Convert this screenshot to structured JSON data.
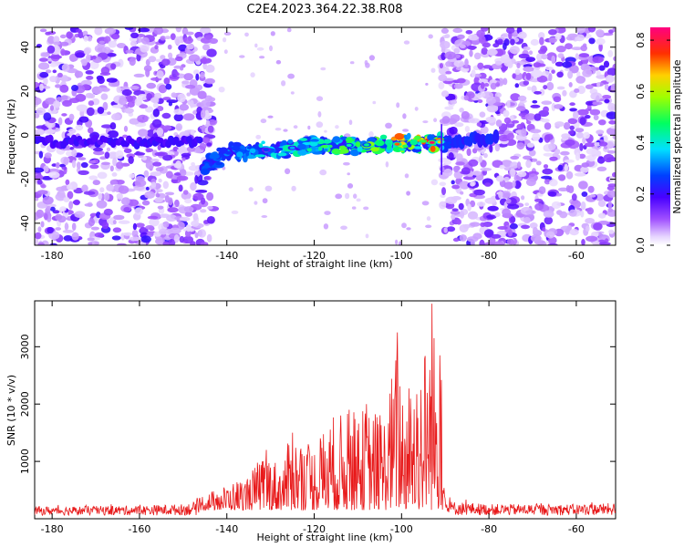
{
  "title": "C2E4.2023.364.22.38.R08",
  "chart_data": [
    {
      "type": "heatmap",
      "xlabel": "Height of straight line (km)",
      "ylabel": "Frequency (Hz)",
      "xlim": [
        -184,
        -51
      ],
      "ylim": [
        -50,
        49
      ],
      "x_ticks": [
        -180,
        -160,
        -140,
        -120,
        -100,
        -80,
        -60
      ],
      "y_ticks": [
        -40,
        -20,
        0,
        20,
        40
      ],
      "colorbar": {
        "label": "Normalized spectral amplitude",
        "range": [
          0,
          0.85
        ],
        "ticks": [
          0.0,
          0.2,
          0.4,
          0.6,
          0.8
        ],
        "colormap": "rainbow"
      },
      "noise_region_x": [
        [
          -184,
          -143
        ],
        [
          -91,
          -51
        ]
      ],
      "signal_band": {
        "x": [
          -146,
          -78
        ],
        "center_freq_at": [
          [
            -145,
            -14
          ],
          [
            -140,
            -8
          ],
          [
            -120,
            -5
          ],
          [
            -100,
            -4
          ],
          [
            -90,
            -3
          ],
          [
            -80,
            -2
          ]
        ]
      }
    },
    {
      "type": "line",
      "xlabel": "Height of straight line (km)",
      "ylabel": "SNR (10 * v/v)",
      "xlim": [
        -184,
        -51
      ],
      "ylim": [
        0,
        3800
      ],
      "x_ticks": [
        -180,
        -160,
        -140,
        -120,
        -100,
        -80,
        -60
      ],
      "y_ticks": [
        1000,
        2000,
        3000
      ],
      "series_color": "#e8191a",
      "envelope": [
        [
          -184,
          180
        ],
        [
          -160,
          200
        ],
        [
          -150,
          230
        ],
        [
          -145,
          320
        ],
        [
          -140,
          500
        ],
        [
          -135,
          700
        ],
        [
          -131,
          1200
        ],
        [
          -128,
          900
        ],
        [
          -125,
          1500
        ],
        [
          -120,
          1300
        ],
        [
          -116,
          1850
        ],
        [
          -112,
          1900
        ],
        [
          -108,
          2000
        ],
        [
          -104,
          1900
        ],
        [
          -101,
          3250
        ],
        [
          -99,
          2300
        ],
        [
          -96,
          2950
        ],
        [
          -93,
          3750
        ],
        [
          -91,
          2850
        ],
        [
          -90,
          300
        ],
        [
          -80,
          230
        ],
        [
          -60,
          230
        ],
        [
          -51,
          250
        ]
      ],
      "peaks": [
        [
          -101,
          3250
        ],
        [
          -93,
          3750
        ],
        [
          -91.2,
          2850
        ],
        [
          -108,
          2000
        ],
        [
          -112,
          1900
        ],
        [
          -125,
          1500
        ],
        [
          -131,
          1200
        ]
      ]
    }
  ]
}
